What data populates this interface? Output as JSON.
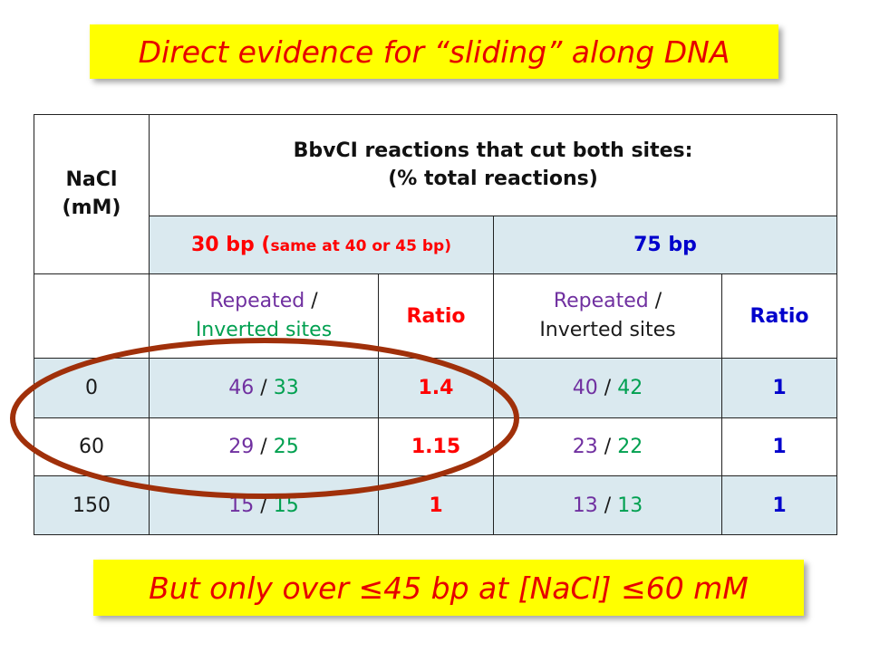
{
  "title": "Direct evidence for “sliding” along DNA",
  "footer": "But only over ≤45 bp at [NaCl] ≤60 mM",
  "table": {
    "nacl_header_line1": "NaCl",
    "nacl_header_line2": "(mM)",
    "main_header_line1": "BbvCI reactions that cut both sites:",
    "main_header_line2": "(% total reactions)",
    "group_30_main": "30 bp (",
    "group_30_note": "same at 40 or 45 bp)",
    "group_75": "75 bp",
    "sub_repeated": "Repeated",
    "sub_slash": " /",
    "sub_inverted": "Inverted sites",
    "sub_ratio": "Ratio",
    "sep": " / ",
    "rows": [
      {
        "nacl": "0",
        "rep30": "46",
        "inv30": "33",
        "ratio30": "1.4",
        "rep75": "40",
        "inv75": "42",
        "ratio75": "1"
      },
      {
        "nacl": "60",
        "rep30": "29",
        "inv30": "25",
        "ratio30": "1.15",
        "rep75": "23",
        "inv75": "22",
        "ratio75": "1"
      },
      {
        "nacl": "150",
        "rep30": "15",
        "inv30": "15",
        "ratio30": "1",
        "rep75": "13",
        "inv75": "13",
        "ratio75": "1"
      }
    ]
  },
  "colors": {
    "banner": "#ffff00",
    "banner_text": "#e60000",
    "repeated": "#7030a0",
    "inverted": "#00a050",
    "ratio_30": "#ff0000",
    "ratio_75": "#0000cc",
    "shade": "#dae9ef",
    "oval": "#a0300a"
  }
}
